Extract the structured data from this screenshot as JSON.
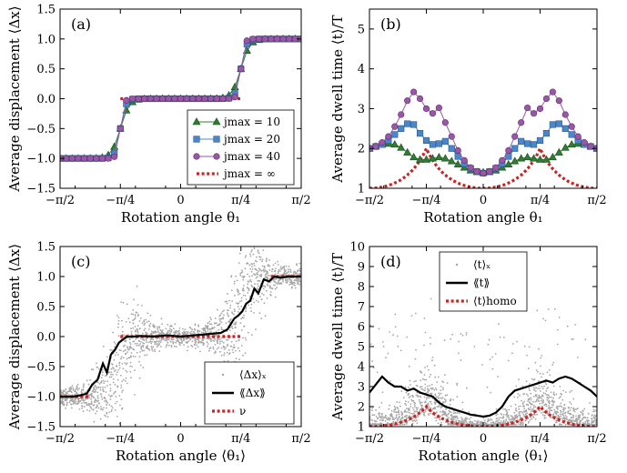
{
  "colors": {
    "triangle": "#2e7d32",
    "square": "#4a86c8",
    "circle": "#9a57a8",
    "dotted": "#cc2222",
    "scatter": "#a6a6a6",
    "line": "#000000"
  },
  "chart_data": [
    {
      "panel": "(a)",
      "type": "line",
      "xlabel": "Rotation angle θ₁",
      "ylabel": "Average displacement ⟨Δx⟩",
      "xlim": [
        -1.5708,
        1.5708
      ],
      "ylim": [
        -1.5,
        1.5
      ],
      "xticklabels": [
        "−π/2",
        "−π/4",
        "0",
        "π/4",
        "π/2"
      ],
      "yticklabels": [
        "−1.5",
        "−1.0",
        "−0.5",
        "0.0",
        "0.5",
        "1.0",
        "1.5"
      ],
      "legend_position": "center-right",
      "series": [
        {
          "name": "jmax = 10",
          "marker": "triangle",
          "color": "#2e7d32",
          "steepness": 18
        },
        {
          "name": "jmax = 20",
          "marker": "square",
          "color": "#4a86c8",
          "steepness": 30
        },
        {
          "name": "jmax = 40",
          "marker": "circle",
          "color": "#9a57a8",
          "steepness": 45
        },
        {
          "name": "jmax = ∞",
          "style": "dotted",
          "color": "#cc2222",
          "steps": [
            [
              -1.5708,
              -1.1781,
              -1
            ],
            [
              -0.7854,
              0.7854,
              0
            ],
            [
              1.1781,
              1.5708,
              1
            ]
          ]
        }
      ]
    },
    {
      "panel": "(b)",
      "type": "line",
      "xlabel": "Rotation angle θ₁",
      "ylabel": "Average dwell time ⟨t⟩/T",
      "xlim": [
        -1.5708,
        1.5708
      ],
      "ylim": [
        1,
        5.5
      ],
      "xticklabels": [
        "−π/2",
        "−π/4",
        "0",
        "π/4",
        "π/2"
      ],
      "yticklabels": [
        "1",
        "2",
        "3",
        "4",
        "5"
      ],
      "series": [
        {
          "name": "jmax = 10",
          "marker": "triangle",
          "color": "#2e7d32",
          "x_deg": [
            -90,
            -85,
            -80,
            -75,
            -70,
            -65,
            -60,
            -55,
            -50,
            -45,
            -40,
            -35,
            -30,
            -25,
            -20,
            -15,
            -10,
            -5,
            0,
            5,
            10,
            15,
            20,
            25,
            30,
            35,
            40,
            45,
            50,
            55,
            60,
            65,
            70,
            75,
            80,
            85,
            90
          ],
          "y": [
            2.0,
            2.05,
            2.1,
            2.12,
            2.1,
            2.02,
            1.9,
            1.78,
            1.72,
            1.72,
            1.75,
            1.78,
            1.75,
            1.68,
            1.6,
            1.52,
            1.45,
            1.41,
            1.4,
            1.41,
            1.45,
            1.52,
            1.6,
            1.68,
            1.75,
            1.78,
            1.75,
            1.72,
            1.72,
            1.78,
            1.9,
            2.02,
            2.1,
            2.12,
            2.1,
            2.05,
            2.0
          ]
        },
        {
          "name": "jmax = 20",
          "marker": "square",
          "color": "#4a86c8",
          "x_deg": [
            -90,
            -85,
            -80,
            -75,
            -70,
            -65,
            -60,
            -55,
            -50,
            -45,
            -40,
            -35,
            -30,
            -25,
            -20,
            -15,
            -10,
            -5,
            0,
            5,
            10,
            15,
            20,
            25,
            30,
            35,
            40,
            45,
            50,
            55,
            60,
            65,
            70,
            75,
            80,
            85,
            90
          ],
          "y": [
            2.0,
            2.05,
            2.1,
            2.2,
            2.35,
            2.5,
            2.62,
            2.6,
            2.38,
            2.2,
            2.1,
            2.12,
            2.18,
            2.0,
            1.8,
            1.62,
            1.5,
            1.42,
            1.38,
            1.42,
            1.5,
            1.62,
            1.8,
            2.0,
            2.18,
            2.12,
            2.1,
            2.2,
            2.38,
            2.6,
            2.62,
            2.5,
            2.35,
            2.2,
            2.1,
            2.05,
            2.0
          ]
        },
        {
          "name": "jmax = 40",
          "marker": "circle",
          "color": "#9a57a8",
          "x_deg": [
            -90,
            -85,
            -80,
            -75,
            -70,
            -65,
            -60,
            -55,
            -50,
            -45,
            -40,
            -35,
            -30,
            -25,
            -20,
            -15,
            -10,
            -5,
            0,
            5,
            10,
            15,
            20,
            25,
            30,
            35,
            40,
            45,
            50,
            55,
            60,
            65,
            70,
            75,
            80,
            85,
            90
          ],
          "y": [
            2.0,
            2.05,
            2.15,
            2.3,
            2.55,
            2.85,
            3.2,
            3.42,
            3.25,
            3.0,
            2.88,
            3.02,
            2.65,
            2.3,
            1.95,
            1.7,
            1.52,
            1.42,
            1.38,
            1.42,
            1.52,
            1.7,
            1.95,
            2.3,
            2.65,
            3.02,
            2.88,
            3.0,
            3.25,
            3.42,
            3.2,
            2.85,
            2.55,
            2.3,
            2.15,
            2.05,
            2.0
          ]
        },
        {
          "name": "jmax = ∞",
          "style": "dotted",
          "color": "#cc2222",
          "formula": "2/(1+|cos 2θ|)",
          "clipped": true
        }
      ]
    },
    {
      "panel": "(c)",
      "type": "scatter",
      "xlabel": "Rotation angle ⟨θ₁⟩",
      "ylabel": "Average displacement ⟨Δx⟩",
      "xlim": [
        -1.5708,
        1.5708
      ],
      "ylim": [
        -1.5,
        1.5
      ],
      "xticklabels": [
        "−π/2",
        "−π/4",
        "0",
        "π/4",
        "π/2"
      ],
      "yticklabels": [
        "−1.5",
        "−1.0",
        "−0.5",
        "0.0",
        "0.5",
        "1.0",
        "1.5"
      ],
      "legend_position": "lower-right",
      "series": [
        {
          "name": "⟨Δx⟩ₓ",
          "style": "scatter",
          "color": "#a6a6a6",
          "points_per_column": 28,
          "columns": 60
        },
        {
          "name": "⟪Δx⟫",
          "style": "line",
          "color": "#000000",
          "x_deg": [
            -90,
            -85,
            -80,
            -75,
            -70,
            -66,
            -62,
            -58,
            -55,
            -52,
            -49,
            -46,
            -43,
            -40,
            -35,
            -30,
            -20,
            -10,
            0,
            10,
            20,
            30,
            35,
            40,
            43,
            46,
            49,
            52,
            55,
            58,
            62,
            66,
            70,
            75,
            80,
            85,
            90
          ],
          "y": [
            -1.0,
            -1.0,
            -1.0,
            -0.98,
            -0.95,
            -0.8,
            -0.72,
            -0.45,
            -0.6,
            -0.3,
            -0.22,
            -0.1,
            -0.05,
            0.0,
            0.0,
            0.01,
            0.0,
            0.02,
            0.0,
            0.02,
            0.04,
            0.06,
            0.12,
            0.3,
            0.35,
            0.42,
            0.55,
            0.6,
            0.8,
            0.72,
            0.95,
            0.92,
            1.0,
            0.98,
            1.0,
            1.0,
            1.0
          ]
        },
        {
          "name": "ν",
          "style": "dotted",
          "color": "#cc2222",
          "steps": [
            [
              -1.5708,
              -1.1781,
              -1
            ],
            [
              -0.7854,
              0.7854,
              0
            ],
            [
              1.1781,
              1.5708,
              1
            ]
          ]
        }
      ]
    },
    {
      "panel": "(d)",
      "type": "scatter",
      "xlabel": "Rotation angle ⟨θ₁⟩",
      "ylabel": "Average dwell time ⟨t⟩/T",
      "xlim": [
        -1.5708,
        1.5708
      ],
      "ylim": [
        1,
        10
      ],
      "xticklabels": [
        "−π/2",
        "−π/4",
        "0",
        "π/4",
        "π/2"
      ],
      "yticklabels": [
        "1",
        "2",
        "3",
        "4",
        "5",
        "6",
        "7",
        "8",
        "9",
        "10"
      ],
      "legend_position": "upper-left",
      "series": [
        {
          "name": "⟨t⟩ₓ",
          "style": "scatter",
          "color": "#a6a6a6",
          "points_per_column": 28,
          "columns": 60
        },
        {
          "name": "⟪t⟫",
          "style": "line",
          "color": "#000000",
          "x_deg": [
            -90,
            -85,
            -80,
            -75,
            -70,
            -65,
            -60,
            -55,
            -50,
            -45,
            -40,
            -35,
            -30,
            -25,
            -20,
            -15,
            -10,
            -5,
            0,
            5,
            10,
            15,
            20,
            25,
            30,
            35,
            40,
            45,
            50,
            55,
            60,
            65,
            70,
            75,
            80,
            85,
            90
          ],
          "y": [
            2.7,
            3.1,
            3.5,
            3.2,
            3.0,
            3.0,
            2.8,
            2.9,
            2.7,
            2.6,
            2.5,
            2.2,
            2.0,
            1.9,
            1.8,
            1.7,
            1.6,
            1.55,
            1.5,
            1.55,
            1.7,
            2.0,
            2.5,
            2.8,
            2.9,
            3.0,
            3.1,
            3.2,
            3.3,
            3.2,
            3.4,
            3.5,
            3.4,
            3.2,
            3.0,
            2.8,
            2.5
          ]
        },
        {
          "name": "⟨t⟩homo",
          "style": "dotted",
          "color": "#cc2222",
          "formula": "2/(1+|cos 2θ|)",
          "clipped": true
        }
      ]
    }
  ]
}
